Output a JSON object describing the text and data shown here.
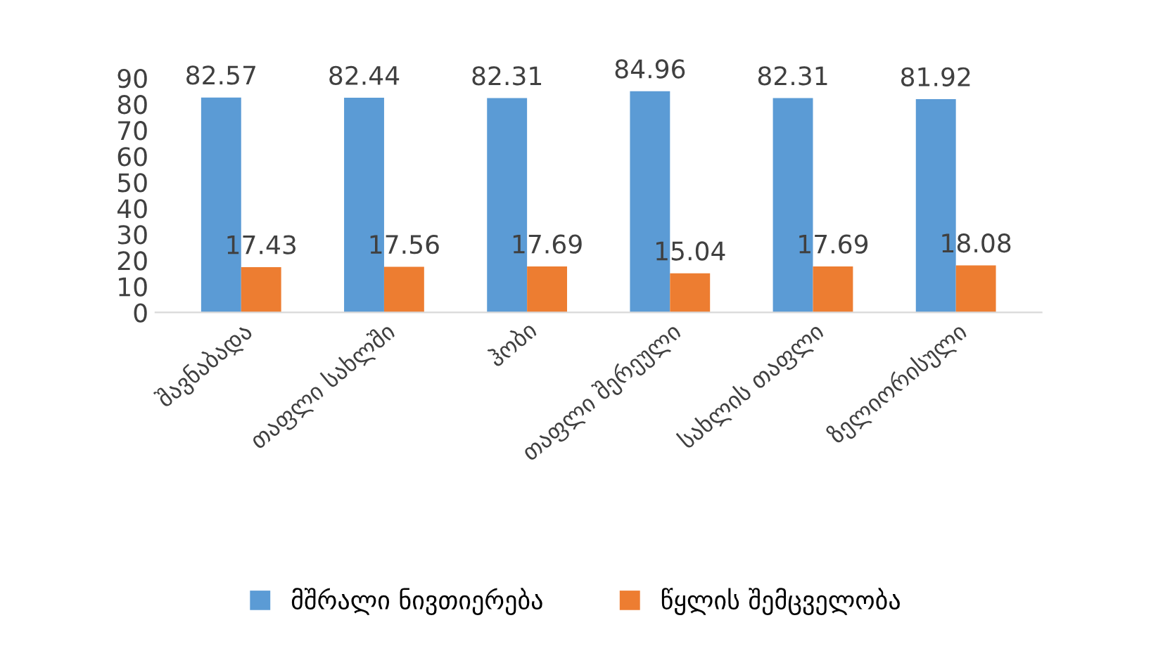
{
  "chart_data": {
    "type": "bar",
    "categories": [
      "შავნაბადა",
      "თაფლი სახლში",
      "ჰობი",
      "თაფლი შერეული",
      "სახლის თაფლი",
      "ზელიორისული"
    ],
    "series": [
      {
        "name": "მშრალი ნივთიერება",
        "color": "#5b9bd5",
        "values": [
          82.57,
          82.44,
          82.31,
          84.96,
          82.31,
          81.92
        ]
      },
      {
        "name": "წყლის შემცველობა",
        "color": "#ed7d31",
        "values": [
          17.43,
          17.56,
          17.69,
          15.04,
          17.69,
          18.08
        ]
      }
    ],
    "ylim": [
      0,
      90
    ],
    "yticks": [
      0,
      10,
      20,
      30,
      40,
      50,
      60,
      70,
      80,
      90
    ],
    "data_labels": true,
    "legend": "bottom",
    "grid": false
  }
}
